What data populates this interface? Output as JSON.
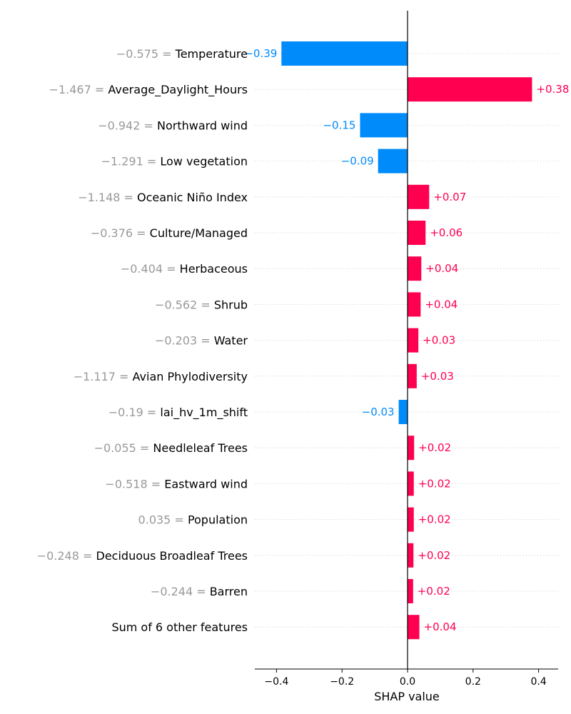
{
  "chart_data": {
    "type": "bar",
    "orientation": "horizontal",
    "title": "",
    "xlabel": "SHAP value",
    "xlim": [
      -0.465,
      0.465
    ],
    "xticks": [
      -0.4,
      -0.2,
      0.0,
      0.2,
      0.4
    ],
    "xtick_labels": [
      "−0.4",
      "−0.2",
      "0.0",
      "0.2",
      "0.4"
    ],
    "grid": false,
    "colors": {
      "positive": "#ff0051",
      "negative": "#008bfb",
      "feature_value": "#999999",
      "zero_line": "#000000"
    },
    "features": [
      {
        "value_label": "−0.575 =",
        "name": "Temperature",
        "shap": -0.385,
        "shap_label": "−0.39"
      },
      {
        "value_label": "−1.467 =",
        "name": "Average_Daylight_Hours",
        "shap": 0.38,
        "shap_label": "+0.38"
      },
      {
        "value_label": "−0.942 =",
        "name": "Northward wind",
        "shap": -0.145,
        "shap_label": "−0.15"
      },
      {
        "value_label": "−1.291 =",
        "name": "Low vegetation",
        "shap": -0.09,
        "shap_label": "−0.09"
      },
      {
        "value_label": "−1.148 =",
        "name": "Oceanic Niño Index",
        "shap": 0.066,
        "shap_label": "+0.07"
      },
      {
        "value_label": "−0.376 =",
        "name": "Culture/Managed",
        "shap": 0.055,
        "shap_label": "+0.06"
      },
      {
        "value_label": "−0.404 =",
        "name": "Herbaceous",
        "shap": 0.042,
        "shap_label": "+0.04"
      },
      {
        "value_label": "−0.562 =",
        "name": "Shrub",
        "shap": 0.04,
        "shap_label": "+0.04"
      },
      {
        "value_label": "−0.203 =",
        "name": "Water",
        "shap": 0.033,
        "shap_label": "+0.03"
      },
      {
        "value_label": "−1.117 =",
        "name": "Avian Phylodiversity",
        "shap": 0.028,
        "shap_label": "+0.03"
      },
      {
        "value_label": "−0.19 =",
        "name": "lai_hv_1m_shift",
        "shap": -0.027,
        "shap_label": "−0.03"
      },
      {
        "value_label": "−0.055 =",
        "name": "Needleleaf Trees",
        "shap": 0.02,
        "shap_label": "+0.02"
      },
      {
        "value_label": "−0.518 =",
        "name": "Eastward wind",
        "shap": 0.019,
        "shap_label": "+0.02"
      },
      {
        "value_label": "0.035 =",
        "name": "Population",
        "shap": 0.019,
        "shap_label": "+0.02"
      },
      {
        "value_label": "−0.248 =",
        "name": "Deciduous Broadleaf Trees",
        "shap": 0.018,
        "shap_label": "+0.02"
      },
      {
        "value_label": "−0.244 =",
        "name": "Barren",
        "shap": 0.017,
        "shap_label": "+0.02"
      },
      {
        "value_label": "",
        "name": "Sum of 6 other features",
        "shap": 0.036,
        "shap_label": "+0.04"
      }
    ]
  }
}
